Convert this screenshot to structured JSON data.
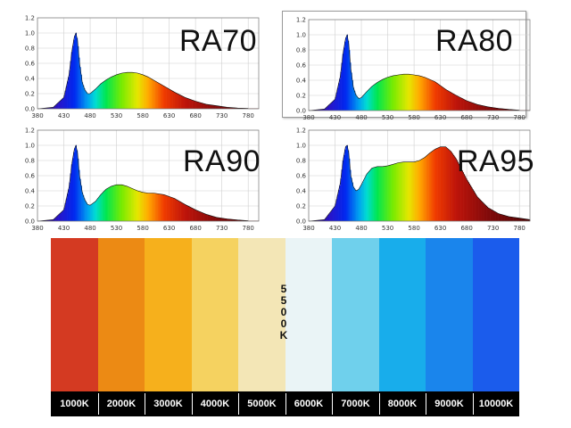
{
  "chart_data": [
    {
      "type": "area",
      "title": "RA70",
      "x": [
        380,
        410,
        430,
        440,
        445,
        450,
        453,
        456,
        460,
        465,
        470,
        475,
        480,
        490,
        500,
        510,
        520,
        530,
        540,
        550,
        560,
        570,
        580,
        590,
        600,
        620,
        640,
        660,
        680,
        700,
        720,
        740,
        760,
        780
      ],
      "y": [
        0.0,
        0.02,
        0.15,
        0.45,
        0.75,
        0.95,
        1.0,
        0.9,
        0.6,
        0.35,
        0.25,
        0.2,
        0.2,
        0.26,
        0.33,
        0.38,
        0.42,
        0.45,
        0.47,
        0.48,
        0.48,
        0.47,
        0.45,
        0.42,
        0.38,
        0.3,
        0.22,
        0.15,
        0.1,
        0.06,
        0.04,
        0.02,
        0.01,
        0.005
      ],
      "xticks": [
        "380",
        "430",
        "480",
        "530",
        "580",
        "630",
        "680",
        "730",
        "780"
      ],
      "yticks": [
        "0.0",
        "0.2",
        "0.4",
        "0.6",
        "0.8",
        "1.0",
        "1.2"
      ],
      "xlim": [
        380,
        800
      ],
      "ylim": [
        0,
        1.2
      ]
    },
    {
      "type": "area",
      "title": "RA80",
      "x": [
        380,
        410,
        430,
        440,
        445,
        450,
        453,
        456,
        460,
        465,
        470,
        475,
        480,
        490,
        500,
        510,
        520,
        530,
        540,
        550,
        560,
        570,
        580,
        590,
        600,
        620,
        640,
        660,
        680,
        700,
        720,
        740,
        760,
        780
      ],
      "y": [
        0.0,
        0.02,
        0.15,
        0.45,
        0.75,
        0.95,
        1.0,
        0.88,
        0.55,
        0.3,
        0.2,
        0.16,
        0.17,
        0.25,
        0.32,
        0.37,
        0.41,
        0.44,
        0.46,
        0.47,
        0.48,
        0.48,
        0.47,
        0.46,
        0.44,
        0.38,
        0.28,
        0.2,
        0.13,
        0.08,
        0.05,
        0.03,
        0.015,
        0.005
      ],
      "xticks": [
        "380",
        "430",
        "480",
        "530",
        "580",
        "630",
        "680",
        "730",
        "780"
      ],
      "yticks": [
        "0.0",
        "0.2",
        "0.4",
        "0.6",
        "0.8",
        "1.0",
        "1.2"
      ],
      "xlim": [
        380,
        800
      ],
      "ylim": [
        0,
        1.2
      ]
    },
    {
      "type": "area",
      "title": "RA90",
      "x": [
        380,
        410,
        430,
        440,
        445,
        450,
        453,
        456,
        460,
        465,
        470,
        475,
        480,
        490,
        500,
        510,
        520,
        530,
        540,
        550,
        560,
        570,
        580,
        590,
        600,
        620,
        640,
        660,
        680,
        700,
        720,
        740,
        760,
        780
      ],
      "y": [
        0.0,
        0.02,
        0.15,
        0.45,
        0.75,
        0.95,
        1.0,
        0.9,
        0.6,
        0.38,
        0.28,
        0.22,
        0.21,
        0.26,
        0.35,
        0.42,
        0.46,
        0.48,
        0.48,
        0.46,
        0.43,
        0.4,
        0.38,
        0.37,
        0.37,
        0.35,
        0.3,
        0.22,
        0.15,
        0.09,
        0.05,
        0.03,
        0.015,
        0.005
      ],
      "xticks": [
        "380",
        "430",
        "480",
        "530",
        "580",
        "630",
        "680",
        "730",
        "780"
      ],
      "yticks": [
        "0.0",
        "0.2",
        "0.4",
        "0.6",
        "0.8",
        "1.0",
        "1.2"
      ],
      "xlim": [
        380,
        800
      ],
      "ylim": [
        0,
        1.2
      ]
    },
    {
      "type": "area",
      "title": "RA95",
      "x": [
        380,
        410,
        430,
        440,
        445,
        450,
        453,
        456,
        460,
        465,
        470,
        475,
        480,
        490,
        500,
        510,
        520,
        530,
        540,
        550,
        560,
        570,
        580,
        590,
        600,
        610,
        620,
        630,
        640,
        650,
        660,
        680,
        700,
        720,
        740,
        760,
        780,
        800
      ],
      "y": [
        0.0,
        0.02,
        0.2,
        0.5,
        0.8,
        0.98,
        1.0,
        0.9,
        0.6,
        0.45,
        0.4,
        0.42,
        0.48,
        0.62,
        0.7,
        0.72,
        0.72,
        0.73,
        0.75,
        0.77,
        0.78,
        0.78,
        0.78,
        0.8,
        0.84,
        0.9,
        0.95,
        0.98,
        0.98,
        0.92,
        0.82,
        0.55,
        0.32,
        0.18,
        0.1,
        0.06,
        0.04,
        0.02
      ],
      "xticks": [
        "380",
        "430",
        "480",
        "530",
        "580",
        "630",
        "680",
        "730",
        "780"
      ],
      "yticks": [
        "0.0",
        "0.2",
        "0.4",
        "0.6",
        "0.8",
        "1.0",
        "1.2"
      ],
      "xlim": [
        380,
        800
      ],
      "ylim": [
        0,
        1.2
      ]
    }
  ],
  "color_temperature_scale": {
    "swatches": [
      {
        "label": "1000K",
        "color": "#d43a22"
      },
      {
        "label": "2000K",
        "color": "#ec8a14"
      },
      {
        "label": "3000K",
        "color": "#f6b01c"
      },
      {
        "label": "4000K",
        "color": "#f5d260"
      },
      {
        "label": "5000K",
        "color": "#f3e6b6"
      },
      {
        "label": "6000K",
        "color": "#eaf4f6"
      },
      {
        "label": "7000K",
        "color": "#6fd0ec"
      },
      {
        "label": "8000K",
        "color": "#18adeb"
      },
      {
        "label": "9000K",
        "color": "#1a85ec"
      },
      {
        "label": "10000K",
        "color": "#1b5cec"
      }
    ],
    "midpoint_label": "5500K"
  }
}
